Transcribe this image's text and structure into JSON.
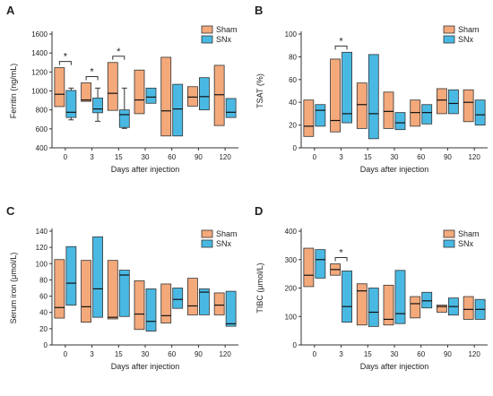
{
  "colors": {
    "Sham": "#f4a97b",
    "SNx": "#49b9e3"
  },
  "chart_data": [
    {
      "panel": "A",
      "type": "box",
      "xlabel": "Days after injection",
      "ylabel": "Ferritin (ng/mL)",
      "categories": [
        "0",
        "3",
        "15",
        "30",
        "60",
        "90",
        "120"
      ],
      "ylim": [
        400,
        1600
      ],
      "yticks": [
        400,
        600,
        800,
        1000,
        1200,
        1400,
        1600
      ],
      "legend": [
        "Sham",
        "SNx"
      ],
      "series": [
        {
          "name": "Sham",
          "boxes": [
            [
              835,
              965,
              1245
            ],
            [
              890,
              905,
              1085
            ],
            [
              795,
              975,
              1300
            ],
            [
              760,
              905,
              1220
            ],
            [
              525,
              790,
              1355
            ],
            [
              840,
              935,
              1045
            ],
            [
              635,
              960,
              1270
            ]
          ]
        },
        {
          "name": "SNx",
          "boxes": [
            [
              720,
              775,
              1005
            ],
            [
              770,
              810,
              925
            ],
            [
              615,
              750,
              800
            ],
            [
              870,
              935,
              1030
            ],
            [
              525,
              810,
              1070
            ],
            [
              800,
              940,
              1140
            ],
            [
              720,
              775,
              920
            ]
          ]
        }
      ],
      "whiskers": [
        {
          "series": "SNx",
          "category": "0",
          "range": [
            695,
            1030
          ]
        },
        {
          "series": "SNx",
          "category": "3",
          "range": [
            680,
            1030
          ]
        },
        {
          "series": "SNx",
          "category": "15",
          "range": [
            605,
            1030
          ]
        }
      ],
      "significance": [
        {
          "category": "0",
          "label": "*"
        },
        {
          "category": "3",
          "label": "*"
        },
        {
          "category": "15",
          "label": "*"
        }
      ]
    },
    {
      "panel": "B",
      "type": "box",
      "xlabel": "Days after injection",
      "ylabel": "TSAT (%)",
      "categories": [
        "0",
        "3",
        "15",
        "30",
        "60",
        "90",
        "120"
      ],
      "ylim": [
        0,
        100
      ],
      "yticks": [
        0,
        20,
        40,
        60,
        80,
        100
      ],
      "legend": [
        "Sham",
        "SNx"
      ],
      "series": [
        {
          "name": "Sham",
          "boxes": [
            [
              10,
              19,
              42
            ],
            [
              14,
              24,
              78
            ],
            [
              17,
              38,
              57
            ],
            [
              17,
              32,
              49
            ],
            [
              19,
              31,
              42
            ],
            [
              30,
              42,
              52
            ],
            [
              23,
              40,
              51
            ]
          ]
        },
        {
          "name": "SNx",
          "boxes": [
            [
              19,
              33,
              38
            ],
            [
              22,
              30,
              84
            ],
            [
              8,
              30,
              82
            ],
            [
              16,
              22,
              31
            ],
            [
              21,
              31,
              38
            ],
            [
              30,
              39,
              51
            ],
            [
              20,
              29,
              42
            ]
          ]
        }
      ],
      "whiskers": [],
      "significance": [
        {
          "category": "3",
          "label": "*"
        }
      ]
    },
    {
      "panel": "C",
      "type": "box",
      "xlabel": "Days after injection",
      "ylabel": "Serum iron (μmol/L)",
      "categories": [
        "0",
        "3",
        "15",
        "30",
        "60",
        "90",
        "120"
      ],
      "ylim": [
        0,
        140
      ],
      "yticks": [
        0,
        20,
        40,
        60,
        80,
        100,
        120,
        140
      ],
      "legend": [
        "Sham",
        "SNx"
      ],
      "series": [
        {
          "name": "Sham",
          "boxes": [
            [
              33,
              46,
              105
            ],
            [
              28,
              47,
              104
            ],
            [
              32,
              34,
              104
            ],
            [
              19,
              38,
              79
            ],
            [
              27,
              36,
              75
            ],
            [
              37,
              48,
              82
            ],
            [
              37,
              49,
              64
            ]
          ]
        },
        {
          "name": "SNx",
          "boxes": [
            [
              49,
              76,
              121
            ],
            [
              34,
              69,
              133
            ],
            [
              35,
              86,
              92
            ],
            [
              17,
              29,
              69
            ],
            [
              45,
              56,
              70
            ],
            [
              37,
              65,
              69
            ],
            [
              23,
              26,
              66
            ]
          ]
        }
      ],
      "whiskers": [],
      "significance": []
    },
    {
      "panel": "D",
      "type": "box",
      "xlabel": "Days after injection",
      "ylabel": "TIBC (μmol/L)",
      "categories": [
        "0",
        "3",
        "15",
        "30",
        "60",
        "90",
        "120"
      ],
      "ylim": [
        0,
        400
      ],
      "yticks": [
        0,
        100,
        200,
        300,
        400
      ],
      "legend": [
        "Sham",
        "SNx"
      ],
      "series": [
        {
          "name": "Sham",
          "boxes": [
            [
              205,
              245,
              340
            ],
            [
              245,
              265,
              285
            ],
            [
              70,
              190,
              215
            ],
            [
              70,
              90,
              210
            ],
            [
              95,
              145,
              170
            ],
            [
              115,
              135,
              140
            ],
            [
              90,
              125,
              170
            ]
          ]
        },
        {
          "name": "SNx",
          "boxes": [
            [
              235,
              300,
              335
            ],
            [
              80,
              135,
              260
            ],
            [
              65,
              115,
              200
            ],
            [
              75,
              110,
              262
            ],
            [
              130,
              155,
              185
            ],
            [
              105,
              135,
              165
            ],
            [
              90,
              125,
              160
            ]
          ]
        }
      ],
      "whiskers": [],
      "significance": [
        {
          "category": "3",
          "label": "*"
        }
      ]
    }
  ]
}
